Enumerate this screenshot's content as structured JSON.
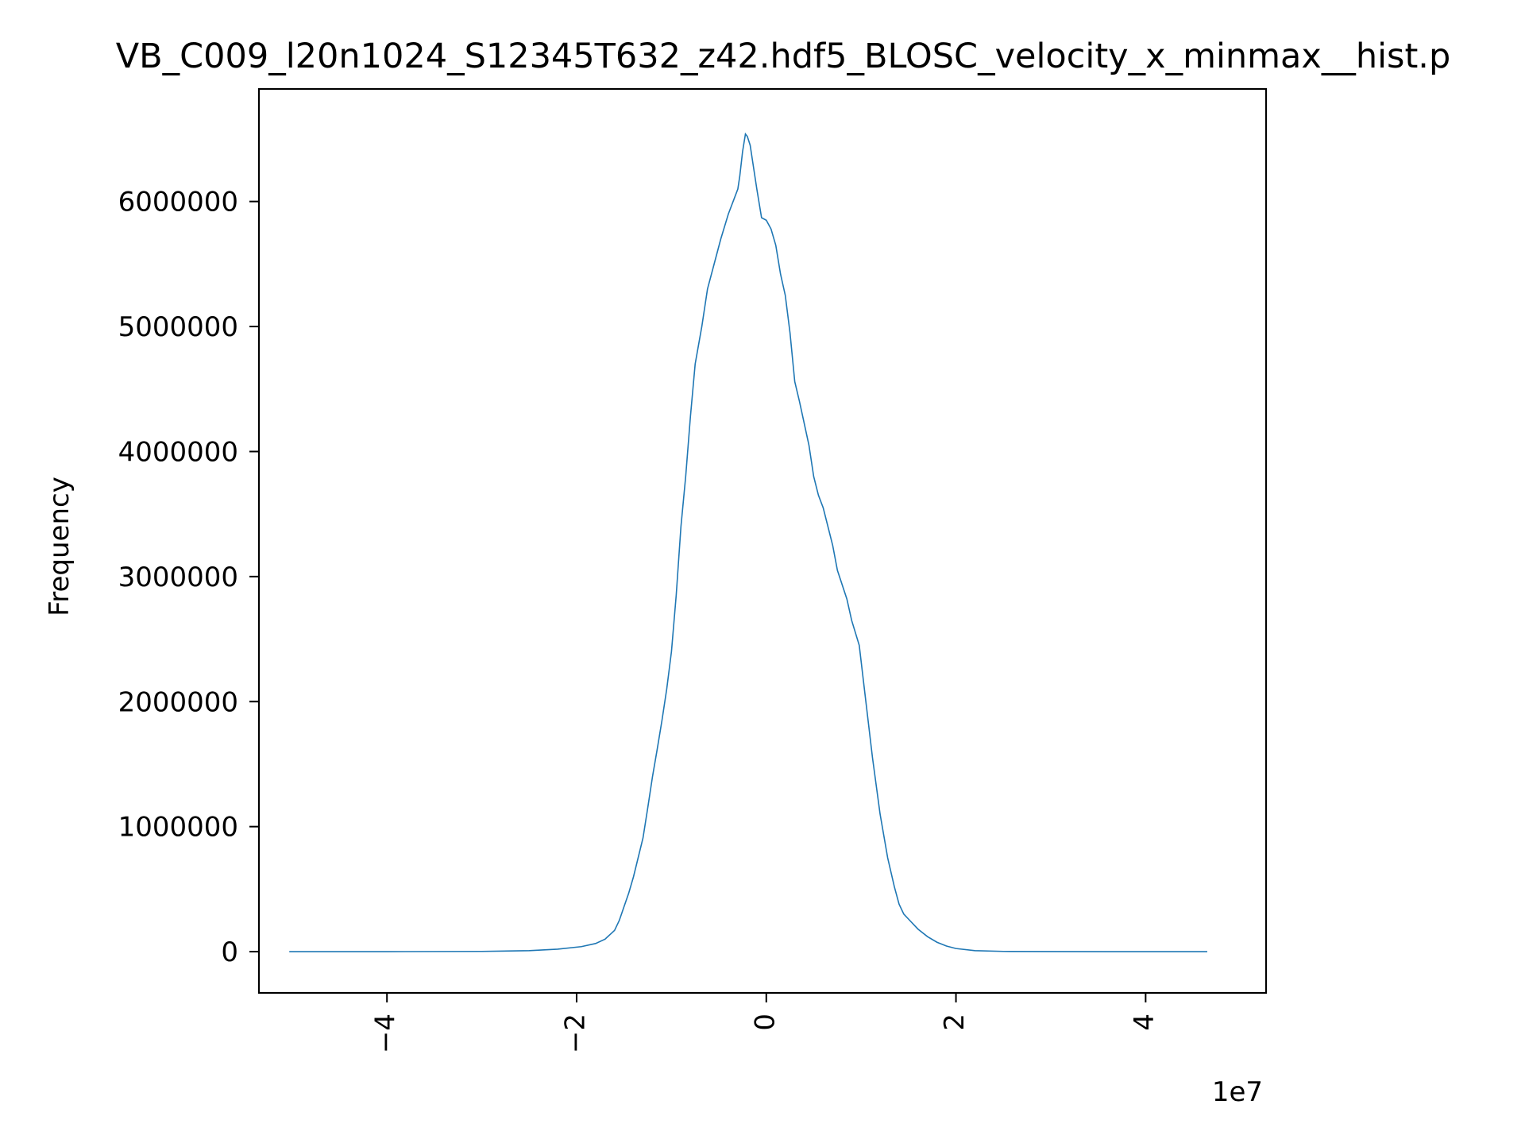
{
  "chart_data": {
    "type": "line",
    "title": "VB_C009_l20n1024_S12345T632_z42.hdf5_BLOSC_velocity_x_minmax__hist.p",
    "xlabel": "",
    "ylabel": "Frequency",
    "x_offset_label": "1e7",
    "xlim": [
      -5.35,
      5.27
    ],
    "ylim": [
      -330000,
      6900000
    ],
    "x_ticks": [
      {
        "value": -4,
        "label": "−4"
      },
      {
        "value": -2,
        "label": "−2"
      },
      {
        "value": 0,
        "label": "0"
      },
      {
        "value": 2,
        "label": "2"
      },
      {
        "value": 4,
        "label": "4"
      }
    ],
    "y_ticks": [
      {
        "value": 0,
        "label": "0"
      },
      {
        "value": 1000000,
        "label": "1000000"
      },
      {
        "value": 2000000,
        "label": "2000000"
      },
      {
        "value": 3000000,
        "label": "3000000"
      },
      {
        "value": 4000000,
        "label": "4000000"
      },
      {
        "value": 5000000,
        "label": "5000000"
      },
      {
        "value": 6000000,
        "label": "6000000"
      }
    ],
    "grid": false,
    "legend": "none",
    "series": [
      {
        "color": "#1f77b4",
        "points": [
          [
            -5.03,
            0
          ],
          [
            -4.0,
            0
          ],
          [
            -3.0,
            2000
          ],
          [
            -2.5,
            8000
          ],
          [
            -2.2,
            20000
          ],
          [
            -1.95,
            40000
          ],
          [
            -1.8,
            65000
          ],
          [
            -1.7,
            100000
          ],
          [
            -1.6,
            170000
          ],
          [
            -1.55,
            250000
          ],
          [
            -1.5,
            360000
          ],
          [
            -1.45,
            470000
          ],
          [
            -1.4,
            600000
          ],
          [
            -1.3,
            910000
          ],
          [
            -1.25,
            1150000
          ],
          [
            -1.2,
            1400000
          ],
          [
            -1.15,
            1620000
          ],
          [
            -1.1,
            1850000
          ],
          [
            -1.05,
            2100000
          ],
          [
            -1.0,
            2400000
          ],
          [
            -0.95,
            2850000
          ],
          [
            -0.9,
            3400000
          ],
          [
            -0.85,
            3800000
          ],
          [
            -0.8,
            4280000
          ],
          [
            -0.75,
            4700000
          ],
          [
            -0.68,
            5000000
          ],
          [
            -0.62,
            5300000
          ],
          [
            -0.55,
            5500000
          ],
          [
            -0.48,
            5700000
          ],
          [
            -0.4,
            5900000
          ],
          [
            -0.35,
            6000000
          ],
          [
            -0.3,
            6100000
          ],
          [
            -0.28,
            6200000
          ],
          [
            -0.25,
            6400000
          ],
          [
            -0.22,
            6540000
          ],
          [
            -0.2,
            6520000
          ],
          [
            -0.17,
            6450000
          ],
          [
            -0.14,
            6300000
          ],
          [
            -0.1,
            6100000
          ],
          [
            -0.05,
            5870000
          ],
          [
            0.0,
            5850000
          ],
          [
            0.05,
            5780000
          ],
          [
            0.1,
            5650000
          ],
          [
            0.15,
            5420000
          ],
          [
            0.2,
            5250000
          ],
          [
            0.25,
            4950000
          ],
          [
            0.3,
            4560000
          ],
          [
            0.35,
            4400000
          ],
          [
            0.45,
            4050000
          ],
          [
            0.5,
            3800000
          ],
          [
            0.55,
            3650000
          ],
          [
            0.6,
            3550000
          ],
          [
            0.7,
            3250000
          ],
          [
            0.75,
            3050000
          ],
          [
            0.85,
            2820000
          ],
          [
            0.9,
            2650000
          ],
          [
            0.98,
            2450000
          ],
          [
            1.05,
            2000000
          ],
          [
            1.12,
            1550000
          ],
          [
            1.2,
            1100000
          ],
          [
            1.28,
            750000
          ],
          [
            1.35,
            520000
          ],
          [
            1.4,
            380000
          ],
          [
            1.45,
            300000
          ],
          [
            1.5,
            260000
          ],
          [
            1.6,
            180000
          ],
          [
            1.7,
            120000
          ],
          [
            1.8,
            75000
          ],
          [
            1.9,
            45000
          ],
          [
            2.0,
            25000
          ],
          [
            2.2,
            8000
          ],
          [
            2.5,
            2000
          ],
          [
            3.0,
            500
          ],
          [
            4.0,
            0
          ],
          [
            4.65,
            0
          ]
        ]
      }
    ]
  }
}
